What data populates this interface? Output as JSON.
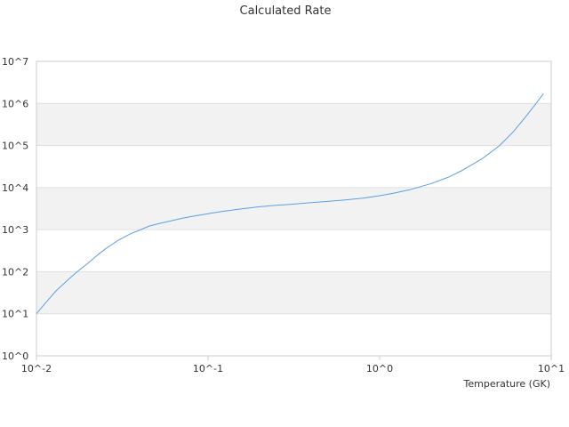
{
  "chart_data": {
    "type": "line",
    "title": "Calculated Rate",
    "xlabel": "Temperature (GK)",
    "ylabel": "",
    "x_scale": "log",
    "y_scale": "log",
    "xlim": [
      0.01,
      10
    ],
    "ylim": [
      1,
      10000000
    ],
    "x_tick_labels": [
      "10^-2",
      "10^-1",
      "10^0",
      "10^1"
    ],
    "y_tick_labels": [
      "10^0",
      "10^1",
      "10^2",
      "10^3",
      "10^4",
      "10^5",
      "10^6",
      "10^7"
    ],
    "grid": "alternating horizontal bands",
    "legend": "none",
    "colors": {
      "line": "#5aa0e6",
      "band": "#f2f2f2",
      "gridline": "#e0e0e0",
      "axis": "#cccccc",
      "text": "#333333"
    },
    "series": [
      {
        "x": [
          0.01,
          0.011,
          0.012,
          0.013,
          0.015,
          0.017,
          0.02,
          0.023,
          0.025,
          0.03,
          0.035,
          0.04,
          0.045,
          0.05,
          0.06,
          0.07,
          0.08,
          0.1,
          0.12,
          0.15,
          0.2,
          0.25,
          0.3,
          0.4,
          0.5,
          0.6,
          0.8,
          1.0,
          1.2,
          1.5,
          2.0,
          2.5,
          3.0,
          4.0,
          5.0,
          6.0,
          7.0,
          8.0,
          9.0
        ],
        "y": [
          10,
          16,
          24,
          35,
          60,
          95,
          160,
          260,
          340,
          560,
          780,
          980,
          1200,
          1350,
          1600,
          1850,
          2050,
          2400,
          2700,
          3050,
          3500,
          3800,
          4000,
          4400,
          4700,
          5000,
          5600,
          6400,
          7300,
          8900,
          12500,
          17500,
          25000,
          50000,
          100000,
          210000,
          450000,
          900000,
          1700000
        ]
      }
    ]
  }
}
